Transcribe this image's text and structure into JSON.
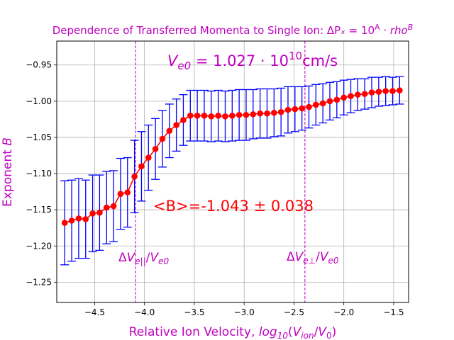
{
  "chart_data": {
    "type": "line",
    "title": "Dependence of Transferred Momenta to Single Ion: ΔPₓ = 10ᴬ · rhoᴮ",
    "xlabel": "Relative Ion Velocity, log₁₀(V_ion/V₀)",
    "ylabel": "Exponent B",
    "xlim": [
      -4.88,
      -1.35
    ],
    "ylim": [
      -1.278,
      -0.917
    ],
    "grid": true,
    "x_ticks": [
      -4.5,
      -4.0,
      -3.5,
      -3.0,
      -2.5,
      -2.0,
      -1.5
    ],
    "x_tick_labels": [
      "−4.5",
      "−4.0",
      "−3.5",
      "−3.0",
      "−2.5",
      "−2.0",
      "−1.5"
    ],
    "y_ticks": [
      -0.95,
      -1.0,
      -1.05,
      -1.1,
      -1.15,
      -1.2,
      -1.25
    ],
    "y_tick_labels": [
      "−0.95",
      "−1.00",
      "−1.05",
      "−1.10",
      "−1.15",
      "−1.20",
      "−1.25"
    ],
    "series": [
      {
        "color": "#ff0000",
        "errorbar_color": "#0000ff",
        "x": [
          -4.8,
          -4.73,
          -4.66,
          -4.59,
          -4.52,
          -4.45,
          -4.38,
          -4.31,
          -4.24,
          -4.17,
          -4.1,
          -4.03,
          -3.96,
          -3.89,
          -3.82,
          -3.75,
          -3.68,
          -3.61,
          -3.54,
          -3.47,
          -3.4,
          -3.33,
          -3.26,
          -3.19,
          -3.12,
          -3.05,
          -2.98,
          -2.91,
          -2.84,
          -2.77,
          -2.7,
          -2.63,
          -2.56,
          -2.49,
          -2.42,
          -2.35,
          -2.28,
          -2.21,
          -2.14,
          -2.07,
          -2.0,
          -1.93,
          -1.86,
          -1.79,
          -1.72,
          -1.65,
          -1.58,
          -1.51,
          -1.44
        ],
        "y": [
          -1.168,
          -1.165,
          -1.162,
          -1.163,
          -1.155,
          -1.154,
          -1.147,
          -1.145,
          -1.128,
          -1.126,
          -1.104,
          -1.09,
          -1.078,
          -1.066,
          -1.052,
          -1.041,
          -1.033,
          -1.026,
          -1.02,
          -1.02,
          -1.02,
          -1.021,
          -1.02,
          -1.021,
          -1.02,
          -1.019,
          -1.019,
          -1.018,
          -1.017,
          -1.017,
          -1.016,
          -1.015,
          -1.012,
          -1.011,
          -1.01,
          -1.008,
          -1.005,
          -1.003,
          -1.0,
          -0.998,
          -0.995,
          -0.993,
          -0.991,
          -0.99,
          -0.988,
          -0.987,
          -0.986,
          -0.986,
          -0.985
        ],
        "yerr": [
          0.058,
          0.056,
          0.055,
          0.054,
          0.053,
          0.052,
          0.05,
          0.049,
          0.049,
          0.048,
          0.05,
          0.048,
          0.045,
          0.042,
          0.039,
          0.037,
          0.036,
          0.035,
          0.035,
          0.035,
          0.035,
          0.035,
          0.035,
          0.035,
          0.035,
          0.035,
          0.035,
          0.034,
          0.034,
          0.034,
          0.033,
          0.033,
          0.032,
          0.031,
          0.03,
          0.029,
          0.028,
          0.027,
          0.026,
          0.025,
          0.024,
          0.023,
          0.022,
          0.021,
          0.021,
          0.02,
          0.02,
          0.019,
          0.019
        ]
      }
    ],
    "vlines": [
      {
        "x": -4.09,
        "label": "ΔV_e||/V_e0"
      },
      {
        "x": -2.39,
        "label": "ΔV_e⊥/V_e0"
      }
    ],
    "annotations": {
      "ve0": "V_e0 = 1.027 · 10¹⁰ cm/s",
      "mean": "<B>=-1.043 ± 0.038"
    },
    "colors": {
      "line": "#ff0000",
      "errorbar": "#0000ff",
      "text": "#bf00bf",
      "grid": "#b0b0b0"
    }
  }
}
